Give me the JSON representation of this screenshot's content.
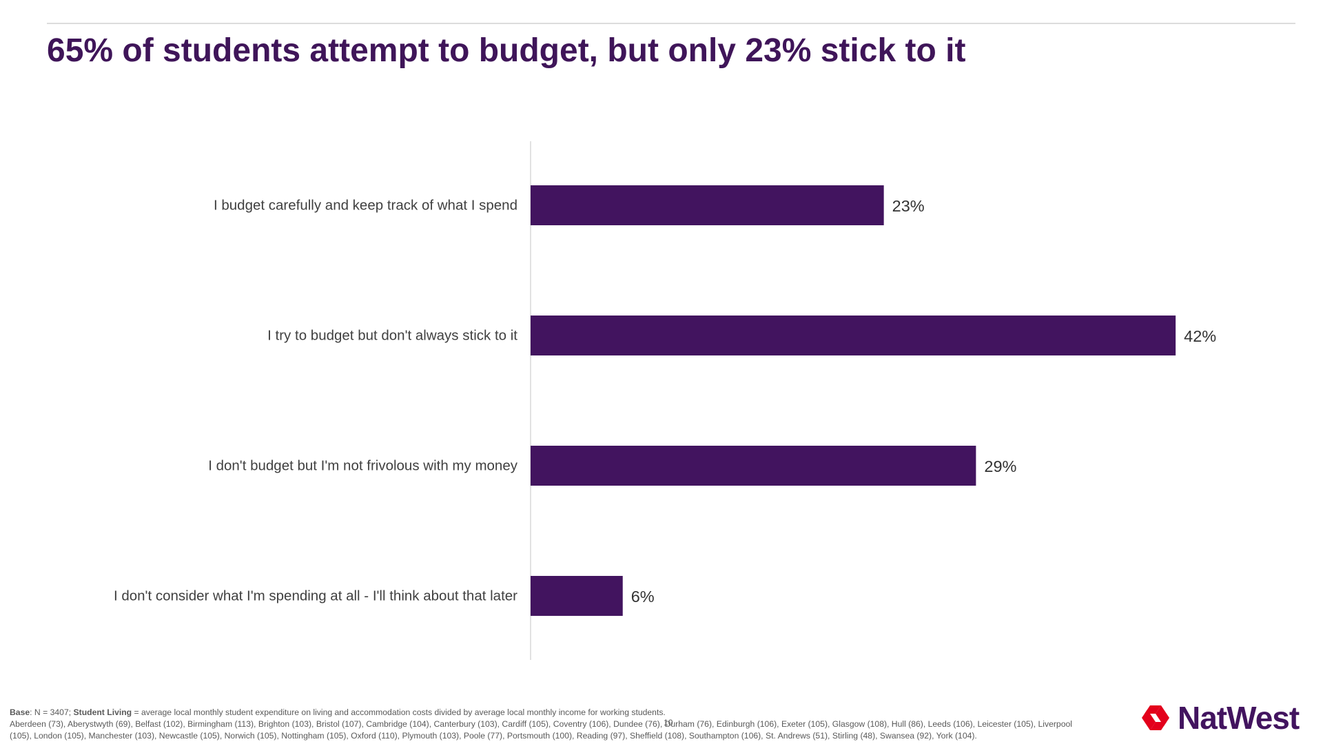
{
  "title": "65% of students attempt to budget, but only 23% stick to it",
  "colors": {
    "title": "#3f1559",
    "bar": "#42145f",
    "axis": "#d9d9d9",
    "brand_red": "#e3001b",
    "brand_purple": "#42145f"
  },
  "chart_data": {
    "type": "bar",
    "orientation": "horizontal",
    "categories": [
      "I budget carefully and keep track of what I spend",
      "I try to budget but don't always stick to it",
      "I don't budget but I'm not frivolous with my money",
      "I don't consider what I'm spending at all - I'll think about that later"
    ],
    "values": [
      23,
      42,
      29,
      6
    ],
    "data_labels": [
      "23%",
      "42%",
      "29%",
      "6%"
    ],
    "unit": "%",
    "xlim": [
      0,
      45
    ],
    "grid": false,
    "legend": "none"
  },
  "footnote": {
    "base_label": "Base",
    "base_text": ": N = 3407;  ",
    "student_living_label": "Student Living",
    "student_living_text": " = average local monthly student expenditure on living and accommodation costs divided by average local monthly income for working students.",
    "cities": "Aberdeen (73), Aberystwyth (69), Belfast (102), Birmingham (113), Brighton (103), Bristol (107), Cambridge (104), Canterbury (103), Cardiff (105), Coventry (106), Dundee (76), Durham (76), Edinburgh (106), Exeter (105), Glasgow (108), Hull (86), Leeds (106), Leicester (105), Liverpool (105), London (105), Manchester (103), Newcastle (105), Norwich (105), Nottingham (105), Oxford (110), Plymouth (103), Poole (77), Portsmouth (100), Reading (97), Sheffield (108), Southampton (106), St. Andrews (51), Stirling (48), Swansea (92), York (104)."
  },
  "page_number": "10",
  "logo": {
    "text": "NatWest",
    "icon": "natwest-cube-icon"
  }
}
